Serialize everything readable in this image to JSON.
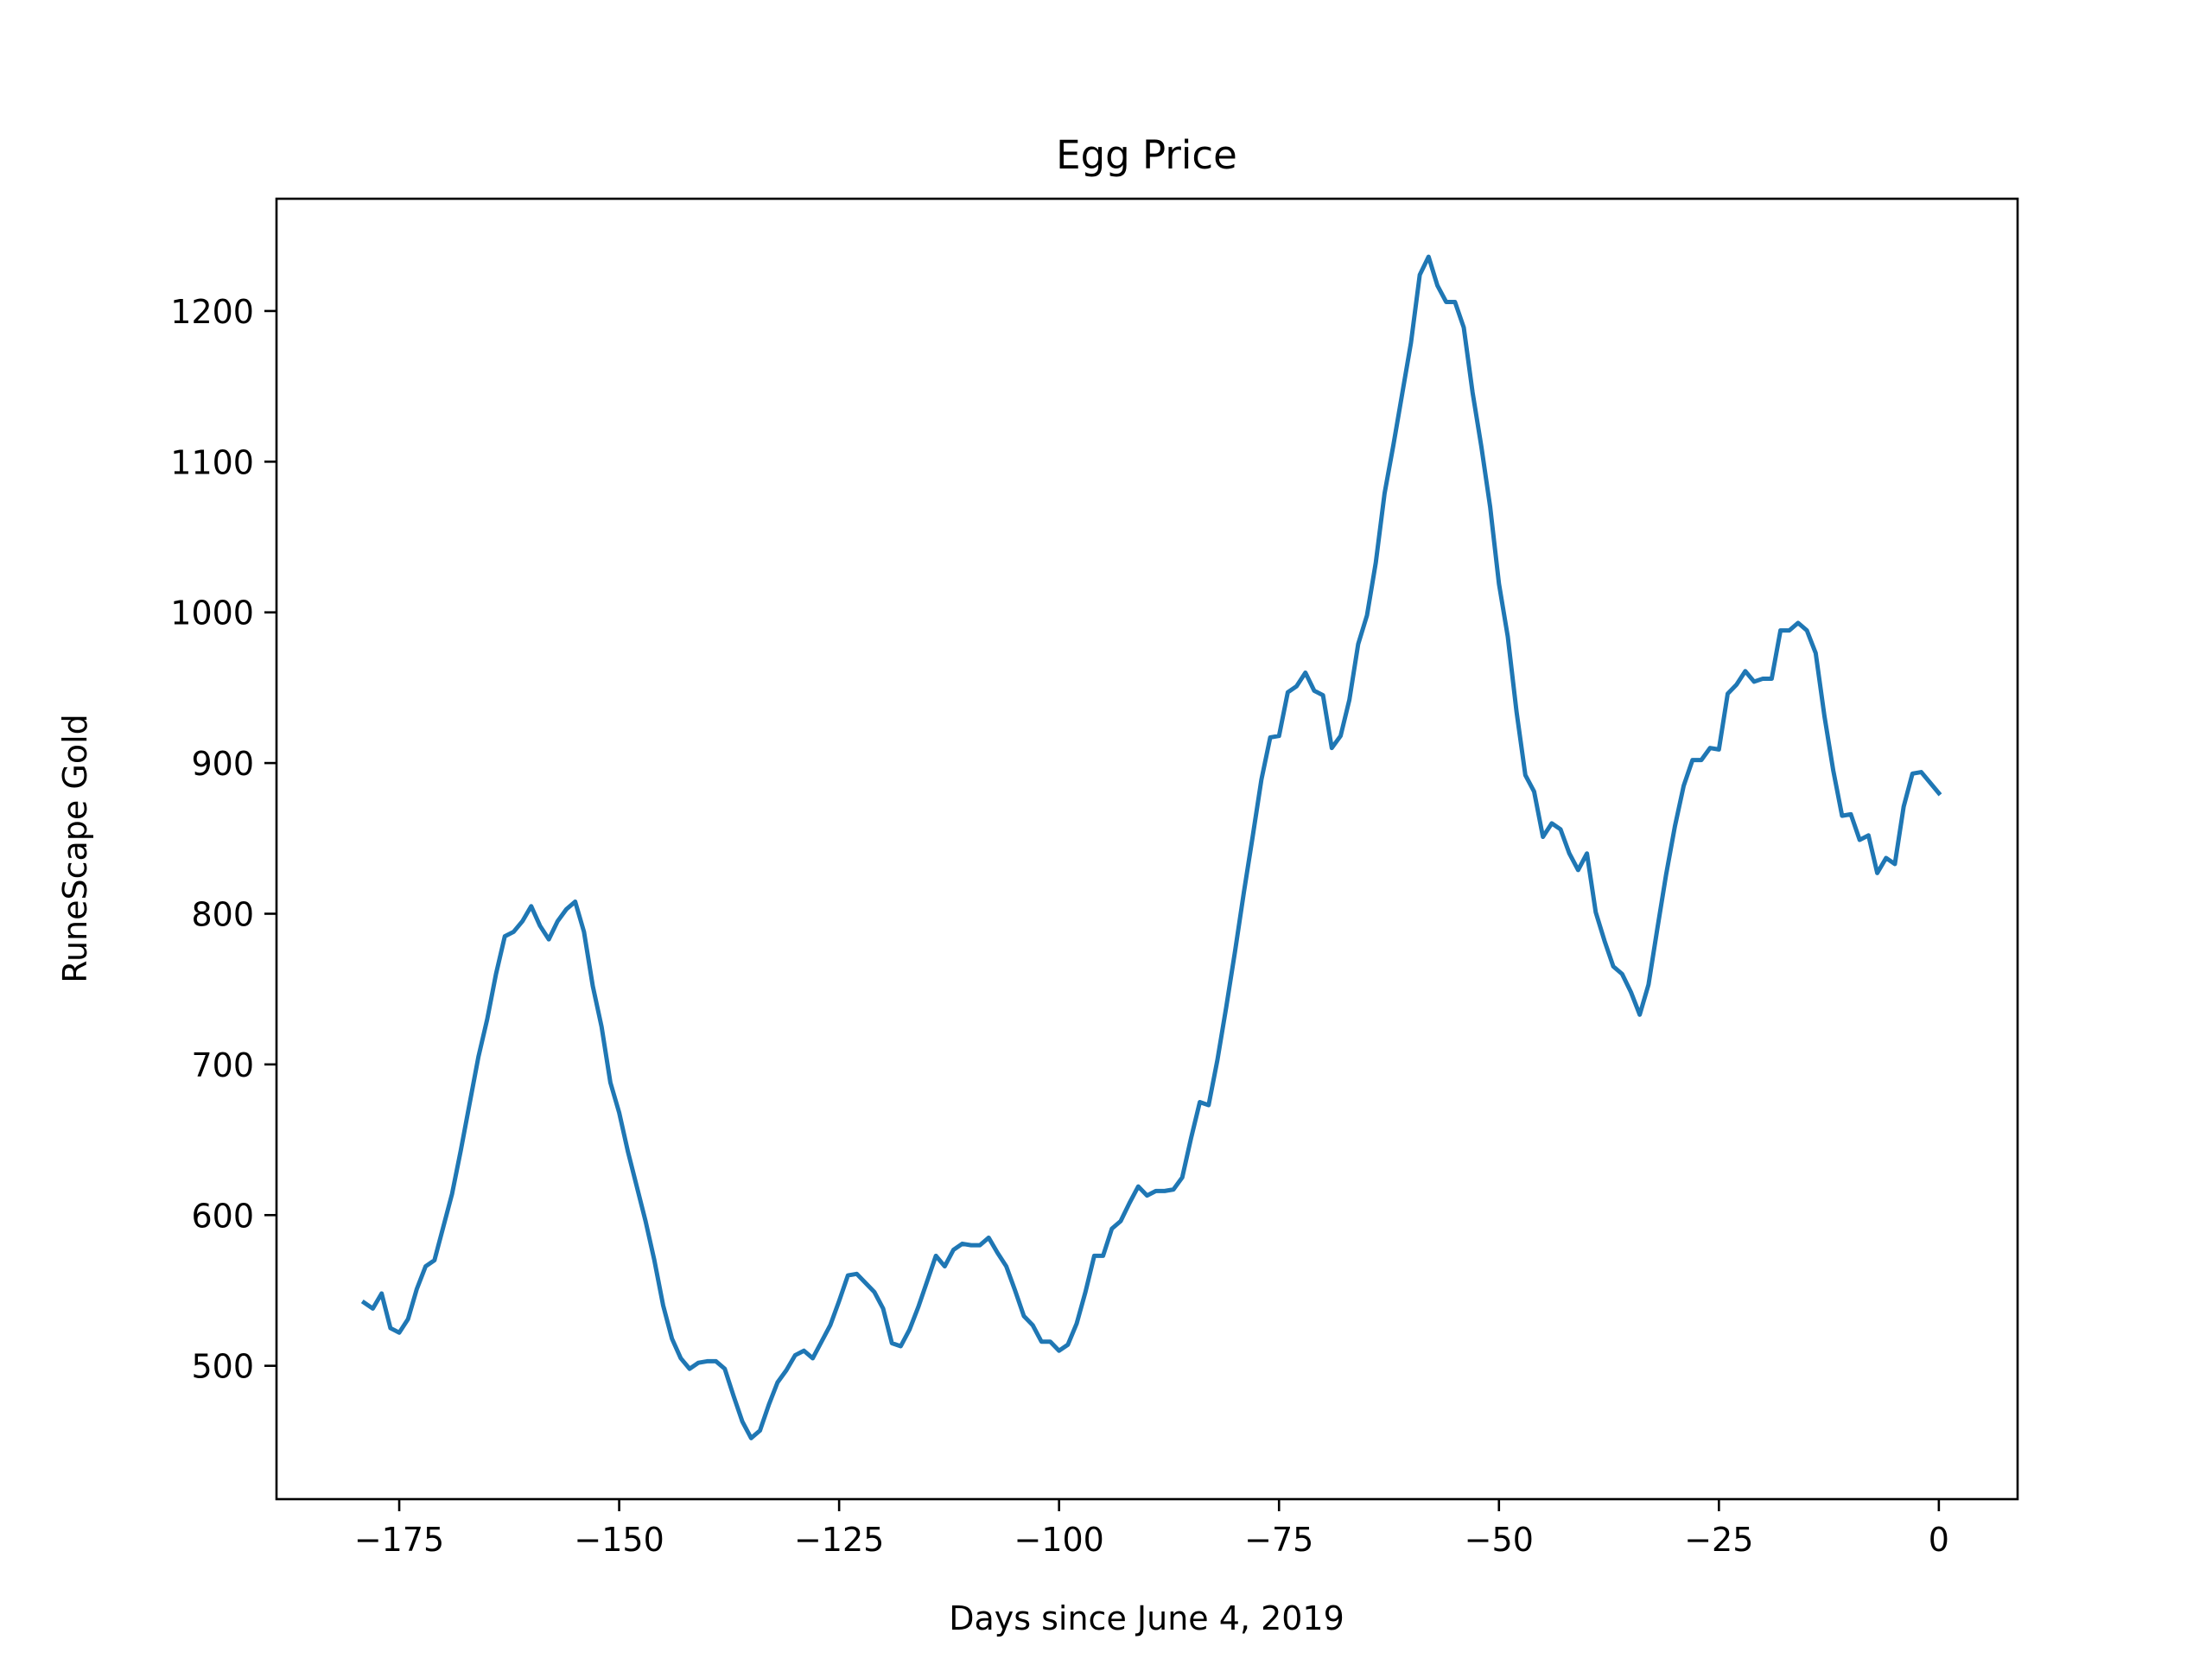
{
  "chart_data": {
    "type": "line",
    "title": "Egg Price",
    "xlabel": "Days since June 4, 2019",
    "ylabel": "RuneScape Gold",
    "xlim": [
      -188.95,
      8.95
    ],
    "ylim": [
      411.5,
      1274.5
    ],
    "x_ticks": [
      -175,
      -150,
      -125,
      -100,
      -75,
      -50,
      -25,
      0
    ],
    "x_tick_labels": [
      "−175",
      "−150",
      "−125",
      "−100",
      "−75",
      "−50",
      "−25",
      "0"
    ],
    "y_ticks": [
      500,
      600,
      700,
      800,
      900,
      1000,
      1100,
      1200
    ],
    "y_tick_labels": [
      "500",
      "600",
      "700",
      "800",
      "900",
      "1000",
      "1100",
      "1200"
    ],
    "grid": false,
    "line_color": "#1f77b4",
    "series": [
      {
        "x": [
          -179,
          -178,
          -177,
          -176,
          -175,
          -174,
          -173,
          -172,
          -171,
          -170,
          -169,
          -168,
          -167,
          -166,
          -165,
          -164,
          -163,
          -162,
          -161,
          -160,
          -159,
          -158,
          -157,
          -156,
          -155,
          -154,
          -153,
          -152,
          -151,
          -150,
          -149,
          -148,
          -147,
          -146,
          -145,
          -144,
          -143,
          -142,
          -141,
          -140,
          -139,
          -138,
          -137,
          -136,
          -135,
          -134,
          -133,
          -132,
          -131,
          -130,
          -129,
          -128,
          -127,
          -126,
          -125,
          -124,
          -123,
          -122,
          -121,
          -120,
          -119,
          -118,
          -117,
          -116,
          -115,
          -114,
          -113,
          -112,
          -111,
          -110,
          -109,
          -108,
          -107,
          -106,
          -105,
          -104,
          -103,
          -102,
          -101,
          -100,
          -99,
          -98,
          -97,
          -96,
          -95,
          -94,
          -93,
          -92,
          -91,
          -90,
          -89,
          -88,
          -87,
          -86,
          -85,
          -84,
          -83,
          -82,
          -81,
          -80,
          -79,
          -78,
          -77,
          -76,
          -75,
          -74,
          -73,
          -72,
          -71,
          -70,
          -69,
          -68,
          -67,
          -66,
          -65,
          -64,
          -63,
          -62,
          -61,
          -60,
          -59,
          -58,
          -57,
          -56,
          -55,
          -54,
          -53,
          -52,
          -51,
          -50,
          -49,
          -48,
          -47,
          -46,
          -45,
          -44,
          -43,
          -42,
          -41,
          -40,
          -39,
          -38,
          -37,
          -36,
          -35,
          -34,
          -33,
          -32,
          -31,
          -30,
          -29,
          -28,
          -27,
          -26,
          -25,
          -24,
          -23,
          -22,
          -21,
          -20,
          -19,
          -18,
          -17,
          -16,
          -15,
          -14,
          -13,
          -12,
          -11,
          -10,
          -9,
          -8,
          -7,
          -6,
          -5,
          -4,
          -3,
          -2,
          -1,
          0
        ],
        "y": [
          542,
          538,
          548,
          525,
          522,
          531,
          551,
          566,
          570,
          592,
          614,
          643,
          674,
          705,
          730,
          760,
          785,
          788,
          795,
          805,
          792,
          783,
          795,
          803,
          808,
          788,
          752,
          725,
          688,
          668,
          642,
          619,
          596,
          570,
          540,
          518,
          505,
          498,
          502,
          503,
          503,
          498,
          480,
          463,
          452,
          457,
          474,
          489,
          497,
          507,
          510,
          505,
          516,
          527,
          543,
          560,
          561,
          555,
          549,
          538,
          515,
          513,
          524,
          539,
          556,
          573,
          566,
          577,
          581,
          580,
          580,
          585,
          575,
          566,
          550,
          533,
          527,
          516,
          516,
          510,
          514,
          528,
          549,
          573,
          573,
          591,
          596,
          608,
          619,
          613,
          616,
          616,
          617,
          625,
          651,
          675,
          673,
          703,
          738,
          775,
          814,
          851,
          889,
          917,
          918,
          947,
          951,
          960,
          948,
          945,
          910,
          918,
          942,
          979,
          998,
          1033,
          1079,
          1111,
          1145,
          1179,
          1224,
          1236,
          1217,
          1206,
          1206,
          1189,
          1146,
          1110,
          1070,
          1019,
          984,
          934,
          892,
          881,
          851,
          860,
          856,
          840,
          829,
          840,
          801,
          782,
          765,
          760,
          748,
          733,
          753,
          790,
          826,
          858,
          885,
          902,
          902,
          910,
          909,
          946,
          952,
          961,
          954,
          956,
          956,
          988,
          988,
          993,
          988,
          973,
          931,
          895,
          865,
          866,
          849,
          852,
          827,
          837,
          833,
          871,
          893,
          894,
          887,
          880
        ]
      }
    ]
  }
}
